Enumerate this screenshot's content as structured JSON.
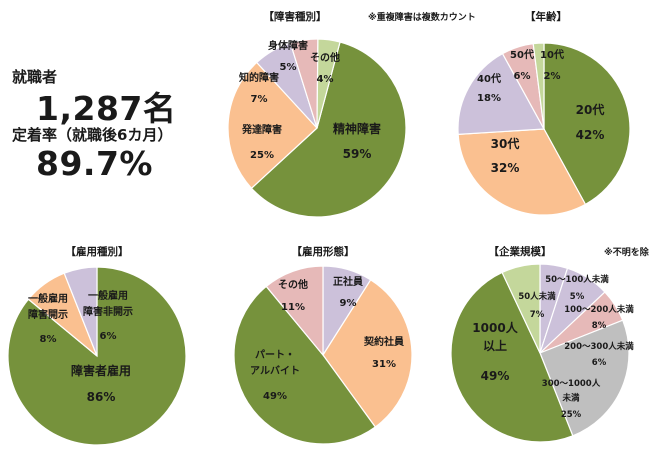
{
  "stats": {
    "employed_label": "就職者",
    "employed_value": "1,287名",
    "retention_label": "定着率（就職後6カ月）",
    "retention_value": "89.7%"
  },
  "colors": {
    "green": "#76923c",
    "peach": "#fac090",
    "lavender": "#ccc1da",
    "pink": "#e6b9b8",
    "sage": "#c4d79b",
    "gray": "#bfbfbf"
  },
  "chart_data": [
    {
      "type": "pie",
      "title": "【障害種別】",
      "note": "※重複障害は複数カウント",
      "categories": [
        "精神障害",
        "発達障害",
        "知的障害",
        "身体障害",
        "その他"
      ],
      "values": [
        59,
        25,
        7,
        5,
        4
      ],
      "value_labels": [
        "59%",
        "25%",
        "7%",
        "5%",
        "4%"
      ],
      "colors": [
        "#76923c",
        "#fac090",
        "#ccc1da",
        "#e6b9b8",
        "#c4d79b"
      ]
    },
    {
      "type": "pie",
      "title": "【年齢】",
      "categories": [
        "20代",
        "30代",
        "40代",
        "50代",
        "10代"
      ],
      "values": [
        42,
        32,
        18,
        6,
        2
      ],
      "value_labels": [
        "42%",
        "32%",
        "18%",
        "6%",
        "2%"
      ],
      "colors": [
        "#76923c",
        "#fac090",
        "#ccc1da",
        "#e6b9b8",
        "#c4d79b"
      ]
    },
    {
      "type": "pie",
      "title": "【雇用種別】",
      "categories": [
        "障害者雇用",
        "一般雇用 障害開示",
        "一般雇用 障害非開示"
      ],
      "values": [
        86,
        8,
        6
      ],
      "value_labels": [
        "86%",
        "8%",
        "6%"
      ],
      "colors": [
        "#76923c",
        "#fac090",
        "#ccc1da"
      ]
    },
    {
      "type": "pie",
      "title": "【雇用形態】",
      "categories": [
        "正社員",
        "契約社員",
        "パート・アルバイト",
        "その他"
      ],
      "values": [
        9,
        31,
        49,
        11
      ],
      "value_labels": [
        "9%",
        "31%",
        "49%",
        "11%"
      ],
      "colors": [
        "#ccc1da",
        "#fac090",
        "#76923c",
        "#e6b9b8"
      ]
    },
    {
      "type": "pie",
      "title": "【企業規模】",
      "note": "※不明を除く",
      "categories": [
        "50〜100人未満",
        "100〜200人未満",
        "200〜300人未満",
        "300〜1000人 未満",
        "1000人 以上",
        "50人未満"
      ],
      "values": [
        5,
        8,
        6,
        25,
        49,
        7
      ],
      "value_labels": [
        "5%",
        "8%",
        "6%",
        "25%",
        "49%",
        "7%"
      ],
      "colors": [
        "#ccc1da",
        "#ccc1da",
        "#e6b9b8",
        "#bfbfbf",
        "#76923c",
        "#c4d79b"
      ]
    }
  ]
}
